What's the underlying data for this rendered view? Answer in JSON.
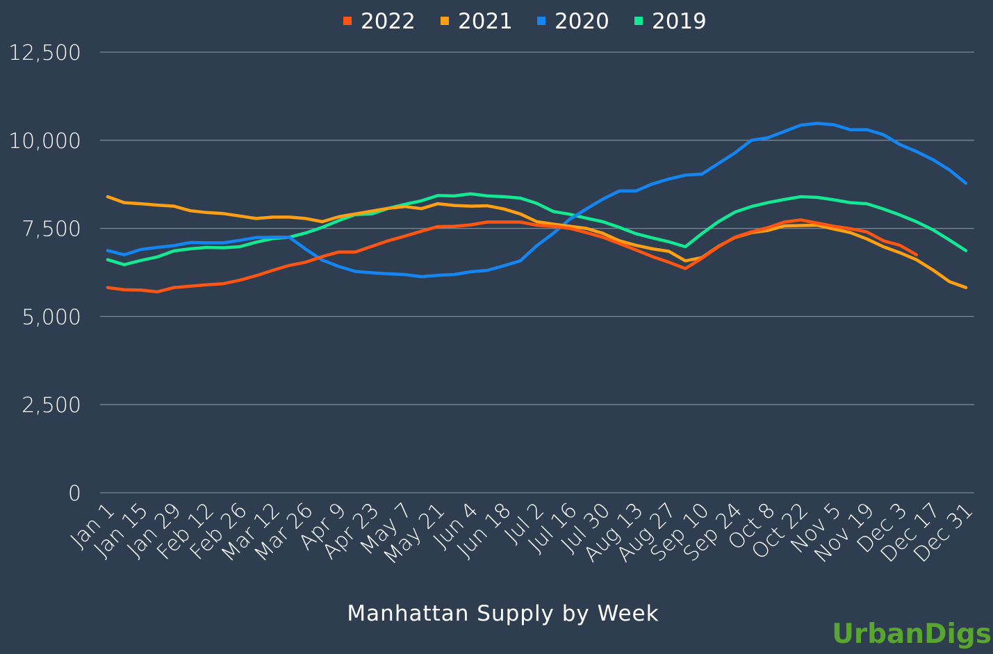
{
  "chart_data": {
    "type": "line",
    "title": "",
    "xlabel": "Manhattan Supply by Week",
    "ylabel": "",
    "ylim": [
      0,
      12500
    ],
    "yticks": [
      0,
      2500,
      5000,
      7500,
      10000,
      12500
    ],
    "ytick_labels": [
      "0",
      "2,500",
      "5,000",
      "7,500",
      "10,000",
      "12,500"
    ],
    "grid": true,
    "legend_position": "top-center",
    "x_tick_labels": [
      "Jan 1",
      "Jan 15",
      "Jan 29",
      "Feb 12",
      "Feb 26",
      "Mar 12",
      "Mar 26",
      "Apr 9",
      "Apr 23",
      "May 7",
      "May 21",
      "Jun 4",
      "Jun 18",
      "Jul 2",
      "Jul 16",
      "Jul 30",
      "Aug 13",
      "Aug 27",
      "Sep 10",
      "Sep 24",
      "Oct 8",
      "Oct 22",
      "Nov 5",
      "Nov 19",
      "Dec 3",
      "Dec 17",
      "Dec 31"
    ],
    "x_weeks": [
      "Jan 1",
      "Jan 8",
      "Jan 15",
      "Jan 22",
      "Jan 29",
      "Feb 5",
      "Feb 12",
      "Feb 19",
      "Feb 26",
      "Mar 5",
      "Mar 12",
      "Mar 19",
      "Mar 26",
      "Apr 2",
      "Apr 9",
      "Apr 16",
      "Apr 23",
      "Apr 30",
      "May 7",
      "May 14",
      "May 21",
      "May 28",
      "Jun 4",
      "Jun 11",
      "Jun 18",
      "Jun 25",
      "Jul 2",
      "Jul 9",
      "Jul 16",
      "Jul 23",
      "Jul 30",
      "Aug 6",
      "Aug 13",
      "Aug 20",
      "Aug 27",
      "Sep 3",
      "Sep 10",
      "Sep 17",
      "Sep 24",
      "Oct 1",
      "Oct 8",
      "Oct 15",
      "Oct 22",
      "Oct 29",
      "Nov 5",
      "Nov 12",
      "Nov 19",
      "Nov 26",
      "Dec 3",
      "Dec 10",
      "Dec 17",
      "Dec 24",
      "Dec 31"
    ],
    "series": [
      {
        "name": "2022",
        "color": "#ff5513",
        "values": [
          5820,
          5760,
          5750,
          5700,
          5820,
          5860,
          5900,
          5930,
          6030,
          6160,
          6310,
          6450,
          6540,
          6700,
          6830,
          6830,
          6990,
          7150,
          7280,
          7420,
          7550,
          7560,
          7600,
          7680,
          7680,
          7680,
          7590,
          7560,
          7500,
          7380,
          7250,
          7070,
          6890,
          6700,
          6540,
          6360,
          6650,
          6980,
          7250,
          7400,
          7520,
          7680,
          7740,
          7650,
          7560,
          7490,
          7400,
          7150,
          7020,
          6750
        ]
      },
      {
        "name": "2021",
        "color": "#ff9f14",
        "values": [
          8400,
          8230,
          8200,
          8160,
          8130,
          8000,
          7950,
          7920,
          7850,
          7780,
          7820,
          7820,
          7780,
          7690,
          7830,
          7910,
          7990,
          8070,
          8120,
          8060,
          8200,
          8150,
          8130,
          8140,
          8050,
          7910,
          7690,
          7620,
          7560,
          7500,
          7360,
          7150,
          7020,
          6920,
          6850,
          6580,
          6670,
          6990,
          7240,
          7380,
          7440,
          7570,
          7580,
          7590,
          7480,
          7380,
          7200,
          6980,
          6810,
          6610,
          6320,
          5990,
          5820
        ]
      },
      {
        "name": "2020",
        "color": "#1585f1",
        "values": [
          6870,
          6750,
          6900,
          6960,
          7010,
          7100,
          7090,
          7090,
          7160,
          7240,
          7250,
          7250,
          6910,
          6600,
          6420,
          6280,
          6240,
          6210,
          6190,
          6130,
          6170,
          6190,
          6270,
          6310,
          6440,
          6580,
          7010,
          7360,
          7760,
          8050,
          8330,
          8560,
          8560,
          8760,
          8900,
          9010,
          9040,
          9340,
          9640,
          10000,
          10070,
          10250,
          10430,
          10480,
          10440,
          10300,
          10300,
          10160,
          9880,
          9680,
          9450,
          9160,
          8780
        ]
      },
      {
        "name": "2019",
        "color": "#14e893",
        "values": [
          6610,
          6470,
          6590,
          6690,
          6860,
          6920,
          6960,
          6950,
          6980,
          7110,
          7210,
          7250,
          7370,
          7530,
          7720,
          7890,
          7910,
          8070,
          8180,
          8280,
          8430,
          8420,
          8480,
          8420,
          8400,
          8360,
          8210,
          7980,
          7900,
          7790,
          7690,
          7530,
          7350,
          7230,
          7120,
          6980,
          7350,
          7690,
          7960,
          8120,
          8230,
          8320,
          8400,
          8380,
          8310,
          8230,
          8200,
          8050,
          7880,
          7690,
          7460,
          7170,
          6870
        ]
      }
    ]
  },
  "brand": {
    "text": "UrbanDigs",
    "color": "#58a630"
  }
}
